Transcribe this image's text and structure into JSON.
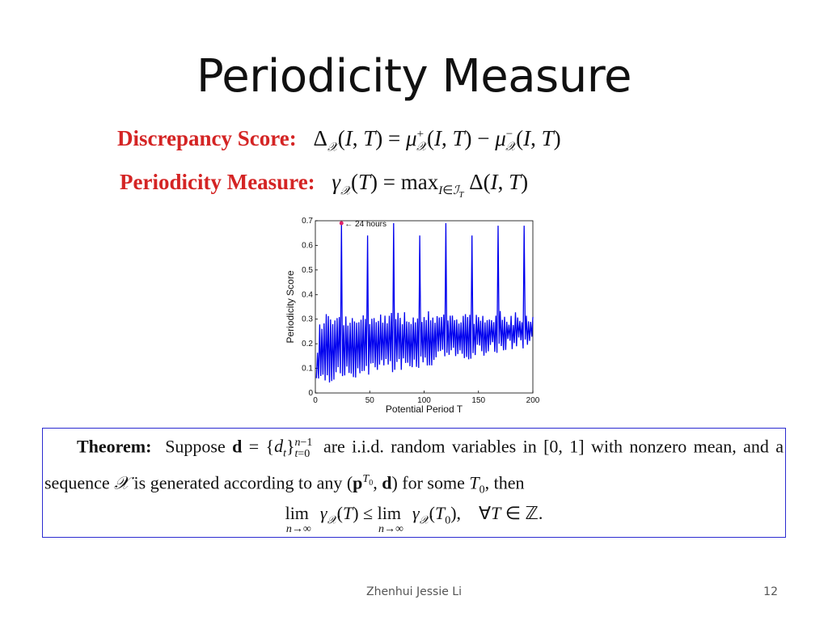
{
  "slide": {
    "title": "Periodicity Measure",
    "author": "Zhenhui Jessie Li",
    "page_number": "12"
  },
  "formulas": {
    "discrepancy_label": "Discrepancy  Score:",
    "discrepancy_expr": "Δ𝒳(I, T) = μ⁺𝒳(I, T) − μ⁻𝒳(I, T)",
    "periodicity_label": "Periodicity  Measure:",
    "periodicity_expr": "γ𝒳(T) = max I∈ℐT Δ(I, T)"
  },
  "theorem": {
    "label": "Theorem:",
    "text_line1": "Suppose d = {dt} t=0..n−1 are i.i.d. random variables in [0, 1] with nonzero mean, and a sequence 𝒳 is generated according to any (p^T0, d) for some T0, then",
    "display_eq": "lim n→∞ γ𝒳(T) ≤ lim n→∞ γ𝒳(T0),   ∀T ∈ ℤ."
  },
  "chart_data": {
    "type": "line",
    "xlabel": "Potential Period T",
    "ylabel": "Periodicity Score",
    "xlim": [
      0,
      200
    ],
    "ylim": [
      0,
      0.7
    ],
    "xticks": [
      0,
      50,
      100,
      150,
      200
    ],
    "yticks": [
      0,
      0.1,
      0.2,
      0.3,
      0.4,
      0.5,
      0.6,
      0.7
    ],
    "line_color": "#0000ee",
    "marker_color": "#e0246a",
    "annotation": {
      "text": "← 24 hours",
      "x": 24,
      "y": 0.69
    },
    "spikes": [
      {
        "x": 24,
        "y": 0.69
      },
      {
        "x": 48,
        "y": 0.64
      },
      {
        "x": 72,
        "y": 0.69
      },
      {
        "x": 96,
        "y": 0.64
      },
      {
        "x": 120,
        "y": 0.69
      },
      {
        "x": 144,
        "y": 0.64
      },
      {
        "x": 168,
        "y": 0.68
      },
      {
        "x": 192,
        "y": 0.68
      }
    ],
    "secondary_peak_level": [
      0.3,
      0.34
    ],
    "baseline_trend": {
      "start": 0.03,
      "end": 0.18
    }
  }
}
